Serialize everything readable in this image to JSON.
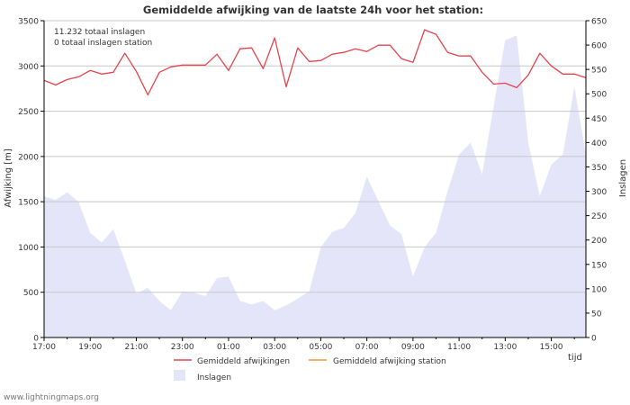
{
  "chart_data": {
    "type": "line",
    "title": "Gemiddelde afwijking van de laatste 24h voor het station:",
    "info_lines": [
      "11.232 totaal inslagen",
      "0 totaal inslagen station"
    ],
    "xlabel": "tijd",
    "ylabel_left": "Afwijking  [m]",
    "ylabel_right": "Inslagen",
    "xlim": [
      0,
      23.5
    ],
    "ylim_left": [
      0,
      3500
    ],
    "ylim_right": [
      0,
      650
    ],
    "x_ticks": [
      {
        "pos": 0,
        "label": "17:00"
      },
      {
        "pos": 2,
        "label": "19:00"
      },
      {
        "pos": 4,
        "label": "21:00"
      },
      {
        "pos": 6,
        "label": "23:00"
      },
      {
        "pos": 8,
        "label": "01:00"
      },
      {
        "pos": 10,
        "label": "03:00"
      },
      {
        "pos": 12,
        "label": "05:00"
      },
      {
        "pos": 14,
        "label": "07:00"
      },
      {
        "pos": 16,
        "label": "09:00"
      },
      {
        "pos": 18,
        "label": "11:00"
      },
      {
        "pos": 20,
        "label": "13:00"
      },
      {
        "pos": 22,
        "label": "15:00"
      }
    ],
    "y_ticks_left": [
      0,
      500,
      1000,
      1500,
      2000,
      2500,
      3000,
      3500
    ],
    "y_ticks_right": [
      0,
      50,
      100,
      150,
      200,
      250,
      300,
      350,
      400,
      450,
      500,
      550,
      600,
      650
    ],
    "colors": {
      "deviation": "#e8434a",
      "station": "#f2963a",
      "strikes_fill": "#e5e5fa",
      "grid": "#c8c8c8",
      "axis": "#000000",
      "text": "#333333"
    },
    "series": [
      {
        "name": "Gemiddeld afwijkingen",
        "type": "line",
        "axis": "left",
        "x": [
          0,
          0.5,
          1,
          1.5,
          2,
          2.5,
          3,
          3.5,
          4,
          4.5,
          5,
          5.5,
          6,
          6.5,
          7,
          7.5,
          8,
          8.5,
          9,
          9.5,
          10,
          10.5,
          11,
          11.5,
          12,
          12.5,
          13,
          13.5,
          14,
          14.5,
          15,
          15.5,
          16,
          16.5,
          17,
          17.5,
          18,
          18.5,
          19,
          19.5,
          20,
          20.5,
          21,
          21.5,
          22,
          22.5,
          23,
          23.5
        ],
        "values": [
          2840,
          2790,
          2850,
          2880,
          2950,
          2910,
          2930,
          3140,
          2940,
          2680,
          2930,
          2990,
          3010,
          3010,
          3010,
          3130,
          2950,
          3190,
          3200,
          2970,
          3310,
          2770,
          3200,
          3050,
          3060,
          3130,
          3150,
          3190,
          3160,
          3230,
          3230,
          3080,
          3040,
          3400,
          3350,
          3150,
          3110,
          3110,
          2930,
          2800,
          2810,
          2760,
          2900,
          3140,
          3000,
          2910,
          2910,
          2870
        ]
      },
      {
        "name": "Gemiddeld afwijking station",
        "type": "line",
        "axis": "left",
        "x": [],
        "values": []
      },
      {
        "name": "Inslagen",
        "type": "area",
        "axis": "right",
        "x": [
          0,
          0.5,
          1,
          1.5,
          2,
          2.5,
          3,
          3.5,
          4,
          4.5,
          5,
          5.5,
          6,
          6.5,
          7,
          7.5,
          8,
          8.5,
          9,
          9.5,
          10,
          10.5,
          11,
          11.5,
          12,
          12.5,
          13,
          13.5,
          14,
          14.5,
          15,
          15.5,
          16,
          16.5,
          17,
          17.5,
          18,
          18.5,
          19,
          19.5,
          20,
          20.5,
          21,
          21.5,
          22,
          22.5,
          23,
          23.5
        ],
        "values": [
          290,
          282,
          298,
          278,
          215,
          195,
          222,
          158,
          90,
          102,
          75,
          56,
          95,
          92,
          85,
          122,
          125,
          75,
          68,
          75,
          56,
          66,
          80,
          95,
          185,
          217,
          225,
          255,
          330,
          280,
          230,
          212,
          125,
          185,
          215,
          300,
          375,
          400,
          335,
          475,
          610,
          620,
          400,
          290,
          355,
          375,
          515,
          375
        ]
      }
    ],
    "legend": [
      {
        "label": "Gemiddeld afwijkingen",
        "kind": "line",
        "color": "#e8434a"
      },
      {
        "label": "Gemiddeld afwijking station",
        "kind": "line",
        "color": "#f2963a"
      },
      {
        "label": "Inslagen",
        "kind": "swatch",
        "color": "#e5e5fa"
      }
    ]
  },
  "watermark": "www.lightningmaps.org"
}
